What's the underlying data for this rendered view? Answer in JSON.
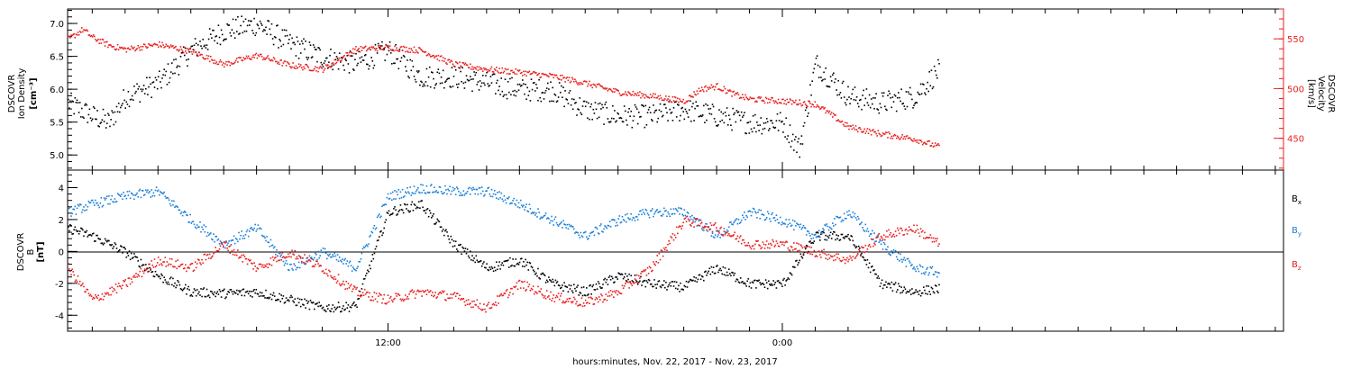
{
  "colors": {
    "black": "#000000",
    "red": "#e8201f",
    "blue": "#1a7fd8"
  },
  "xlabel": "hours:minutes, Nov. 22, 2017 - Nov. 23, 2017",
  "x_axis": {
    "unit": "hours since Nov. 22, 2017 00:00",
    "range": [
      2.25,
      39.25
    ],
    "major_ticks": [
      {
        "value": 12,
        "label": "12:00"
      },
      {
        "value": 24,
        "label": "0:00"
      }
    ],
    "minor_step_hours": 1
  },
  "chart_data": [
    {
      "type": "scatter",
      "panel": "top",
      "left_axis": {
        "label_lines": [
          "DSCOVR",
          "Ion Density",
          "[cm⁻³]"
        ],
        "ylim": [
          4.77,
          7.22
        ],
        "ticks": [
          5.0,
          5.5,
          6.0,
          6.5,
          7.0
        ],
        "tick_labels": [
          "5.0",
          "5.5",
          "6.0",
          "6.5",
          "7.0"
        ]
      },
      "right_axis": {
        "label_lines": [
          "DSCOVR",
          "Velocity",
          "[km/s]"
        ],
        "ylim": [
          418,
          580
        ],
        "ticks": [
          450,
          500,
          550
        ],
        "tick_labels": [
          "450",
          "500",
          "550"
        ]
      },
      "series": [
        {
          "color": "#000000",
          "axis": "left",
          "x": [
            2.25,
            3.0,
            3.5,
            4.0,
            5.0,
            6.0,
            7.0,
            8.0,
            9.0,
            10.0,
            11.0,
            12.0,
            13.0,
            14.0,
            15.0,
            16.0,
            17.0,
            18.0,
            19.0,
            20.0,
            21.0,
            22.0,
            23.0,
            24.0,
            24.5,
            25.0,
            26.0,
            27.0,
            28.0,
            28.75
          ],
          "y": [
            5.8,
            5.6,
            5.5,
            5.9,
            6.1,
            6.6,
            6.9,
            7.0,
            6.7,
            6.5,
            6.4,
            6.6,
            6.2,
            6.2,
            6.1,
            6.0,
            6.0,
            5.7,
            5.6,
            5.6,
            5.7,
            5.6,
            5.5,
            5.5,
            5.1,
            6.4,
            5.9,
            5.8,
            5.9,
            6.3
          ]
        },
        {
          "color": "#e8201f",
          "axis": "right",
          "x": [
            2.25,
            2.7,
            3.0,
            3.5,
            4.0,
            5.0,
            6.0,
            7.0,
            8.0,
            9.0,
            10.0,
            11.0,
            12.0,
            13.0,
            14.0,
            15.0,
            16.0,
            17.0,
            18.0,
            19.0,
            20.0,
            21.0,
            21.5,
            22.0,
            22.5,
            23.0,
            24.0,
            25.0,
            26.0,
            27.0,
            28.0,
            28.75
          ],
          "y": [
            550,
            560,
            552,
            544,
            540,
            545,
            538,
            525,
            534,
            524,
            520,
            540,
            542,
            539,
            525,
            520,
            517,
            513,
            506,
            497,
            493,
            488,
            500,
            503,
            495,
            490,
            488,
            485,
            462,
            455,
            450,
            442
          ]
        }
      ]
    },
    {
      "type": "scatter",
      "panel": "bottom",
      "left_axis": {
        "label_lines": [
          "DSCOVR",
          "B",
          "[nT]"
        ],
        "ylim": [
          -5.0,
          5.1
        ],
        "ticks": [
          -4,
          -2,
          0,
          2,
          4
        ],
        "tick_labels": [
          "-4",
          "-2",
          "0",
          "2",
          "4"
        ]
      },
      "zero_line": true,
      "legend_position": "right",
      "series": [
        {
          "name": "B",
          "subscript": "x",
          "color": "#000000",
          "x": [
            2.25,
            3.0,
            4.0,
            5.0,
            6.0,
            7.0,
            8.0,
            9.0,
            10.0,
            11.0,
            12.0,
            13.0,
            14.0,
            15.0,
            16.0,
            17.0,
            18.0,
            19.0,
            20.0,
            21.0,
            22.0,
            23.0,
            24.0,
            25.0,
            26.0,
            27.0,
            28.0,
            28.75
          ],
          "y": [
            1.5,
            1.0,
            0.0,
            -1.5,
            -2.5,
            -2.6,
            -2.5,
            -3.0,
            -3.5,
            -3.4,
            2.5,
            3.0,
            0.5,
            -1.0,
            -0.5,
            -2.0,
            -2.5,
            -1.5,
            -2.0,
            -2.2,
            -1.0,
            -2.0,
            -2.0,
            1.0,
            1.0,
            -2.0,
            -2.5,
            -2.3
          ]
        },
        {
          "name": "B",
          "subscript": "y",
          "color": "#1a7fd8",
          "x": [
            2.25,
            3.0,
            4.0,
            5.0,
            6.0,
            7.0,
            8.0,
            9.0,
            10.0,
            11.0,
            12.0,
            13.0,
            14.0,
            15.0,
            16.0,
            17.0,
            18.0,
            19.0,
            20.0,
            21.0,
            22.0,
            23.0,
            24.0,
            25.0,
            26.0,
            27.0,
            28.0,
            28.75
          ],
          "y": [
            2.5,
            3.0,
            3.5,
            3.8,
            2.0,
            0.5,
            1.5,
            -1.0,
            0.0,
            -1.0,
            3.5,
            4.0,
            3.8,
            3.8,
            3.0,
            2.0,
            1.0,
            2.0,
            2.5,
            2.5,
            1.0,
            2.5,
            2.0,
            1.0,
            2.5,
            0.5,
            -1.0,
            -1.3
          ]
        },
        {
          "name": "B",
          "subscript": "z",
          "color": "#e8201f",
          "x": [
            2.25,
            3.0,
            4.0,
            5.0,
            6.0,
            7.0,
            8.0,
            9.0,
            10.0,
            11.0,
            12.0,
            13.0,
            14.0,
            15.0,
            16.0,
            17.0,
            18.0,
            19.0,
            20.0,
            21.0,
            22.0,
            23.0,
            24.0,
            25.0,
            26.0,
            27.0,
            28.0,
            28.75
          ],
          "y": [
            -1.0,
            -3.0,
            -2.0,
            -0.5,
            -1.0,
            0.5,
            -1.0,
            0.0,
            -1.0,
            -2.5,
            -3.0,
            -2.5,
            -2.8,
            -3.5,
            -2.0,
            -2.8,
            -3.2,
            -2.5,
            -1.0,
            2.0,
            1.5,
            0.5,
            0.5,
            0.0,
            -0.5,
            1.0,
            1.5,
            0.5
          ]
        }
      ]
    }
  ]
}
